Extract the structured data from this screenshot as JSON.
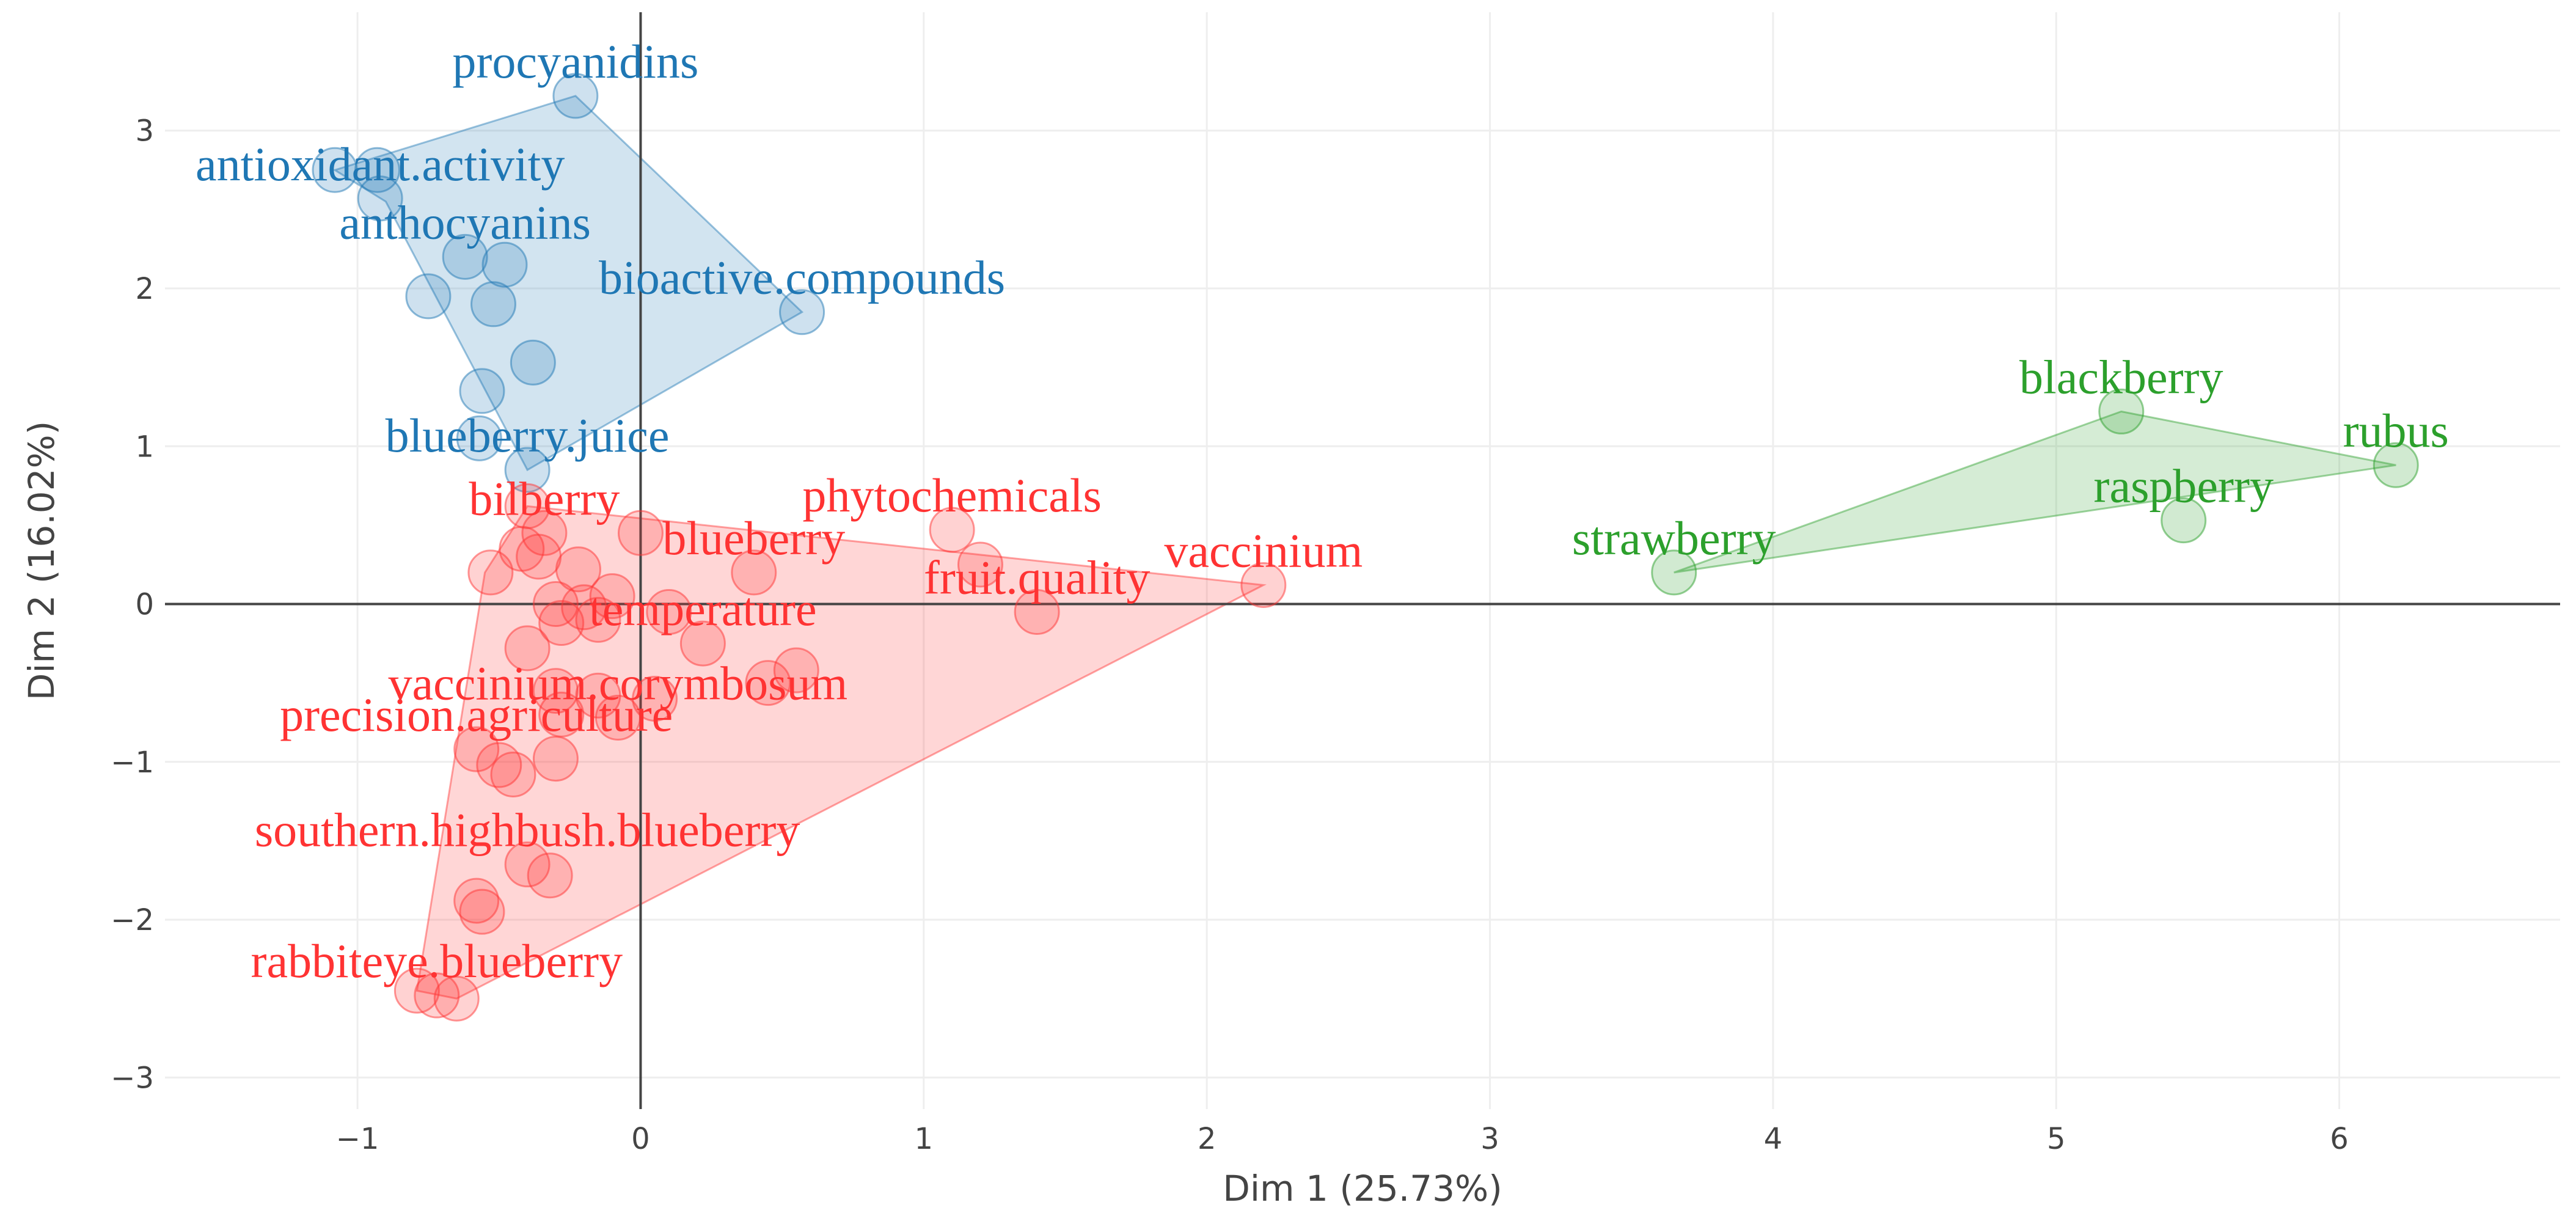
{
  "chart_data": {
    "type": "scatter",
    "xlabel": "Dim 1 (25.73%)",
    "ylabel": "Dim 2 (16.02%)",
    "xlim": [
      -1.68,
      6.78
    ],
    "ylim": [
      -3.2,
      3.75
    ],
    "x_ticks": [
      -1,
      0,
      1,
      2,
      3,
      4,
      5,
      6
    ],
    "y_ticks": [
      -3,
      -2,
      -1,
      0,
      1,
      2,
      3
    ],
    "x_tick_labels": [
      "−1",
      "0",
      "1",
      "2",
      "3",
      "4",
      "5",
      "6"
    ],
    "y_tick_labels": [
      "−3",
      "−2",
      "−1",
      "0",
      "1",
      "2",
      "3"
    ],
    "grid": true,
    "clusters": [
      {
        "color": "#1f77b4",
        "hull": [
          [
            -1.08,
            2.75
          ],
          [
            -0.23,
            3.22
          ],
          [
            0.57,
            1.85
          ],
          [
            -0.4,
            0.85
          ],
          [
            -0.9,
            2.55
          ]
        ],
        "points": [
          {
            "x": -0.23,
            "y": 3.22
          },
          {
            "x": -1.08,
            "y": 2.75
          },
          {
            "x": -0.93,
            "y": 2.75
          },
          {
            "x": -0.92,
            "y": 2.57
          },
          {
            "x": -0.62,
            "y": 2.2
          },
          {
            "x": -0.48,
            "y": 2.15
          },
          {
            "x": -0.75,
            "y": 1.95
          },
          {
            "x": -0.52,
            "y": 1.9
          },
          {
            "x": 0.57,
            "y": 1.85
          },
          {
            "x": -0.38,
            "y": 1.53
          },
          {
            "x": -0.56,
            "y": 1.35
          },
          {
            "x": -0.57,
            "y": 1.05
          },
          {
            "x": -0.4,
            "y": 0.85
          }
        ],
        "labels": [
          {
            "text": "procyanidins",
            "x": -0.23,
            "y": 3.22
          },
          {
            "text": "antioxidant.activity",
            "x": -0.92,
            "y": 2.57
          },
          {
            "text": "anthocyanins",
            "x": -0.62,
            "y": 2.2
          },
          {
            "text": "bioactive.compounds",
            "x": 0.57,
            "y": 1.85
          },
          {
            "text": "blueberry.juice",
            "x": -0.4,
            "y": 0.85
          }
        ]
      },
      {
        "color": "#ff3333",
        "hull": [
          [
            -0.4,
            0.62
          ],
          [
            2.2,
            0.12
          ],
          [
            -0.65,
            -2.5
          ],
          [
            -0.79,
            -2.45
          ],
          [
            -0.55,
            0.2
          ]
        ],
        "points": [
          {
            "x": -0.4,
            "y": 0.62
          },
          {
            "x": -0.34,
            "y": 0.45
          },
          {
            "x": 0.0,
            "y": 0.45
          },
          {
            "x": 1.1,
            "y": 0.47
          },
          {
            "x": -0.42,
            "y": 0.35
          },
          {
            "x": -0.36,
            "y": 0.3
          },
          {
            "x": 1.2,
            "y": 0.25
          },
          {
            "x": -0.53,
            "y": 0.2
          },
          {
            "x": -0.22,
            "y": 0.22
          },
          {
            "x": 0.4,
            "y": 0.2
          },
          {
            "x": 2.2,
            "y": 0.12
          },
          {
            "x": -0.1,
            "y": 0.05
          },
          {
            "x": -0.3,
            "y": 0.0
          },
          {
            "x": -0.2,
            "y": -0.02
          },
          {
            "x": 0.1,
            "y": -0.05
          },
          {
            "x": 1.4,
            "y": -0.05
          },
          {
            "x": -0.15,
            "y": -0.1
          },
          {
            "x": -0.28,
            "y": -0.12
          },
          {
            "x": 0.22,
            "y": -0.25
          },
          {
            "x": -0.4,
            "y": -0.28
          },
          {
            "x": 0.55,
            "y": -0.42
          },
          {
            "x": 0.45,
            "y": -0.5
          },
          {
            "x": -0.3,
            "y": -0.55
          },
          {
            "x": -0.15,
            "y": -0.58
          },
          {
            "x": 0.05,
            "y": -0.6
          },
          {
            "x": -0.28,
            "y": -0.7
          },
          {
            "x": -0.08,
            "y": -0.72
          },
          {
            "x": -0.58,
            "y": -0.92
          },
          {
            "x": -0.3,
            "y": -0.98
          },
          {
            "x": -0.5,
            "y": -1.02
          },
          {
            "x": -0.45,
            "y": -1.08
          },
          {
            "x": -0.4,
            "y": -1.65
          },
          {
            "x": -0.32,
            "y": -1.72
          },
          {
            "x": -0.58,
            "y": -1.88
          },
          {
            "x": -0.56,
            "y": -1.95
          },
          {
            "x": -0.79,
            "y": -2.45
          },
          {
            "x": -0.72,
            "y": -2.48
          },
          {
            "x": -0.65,
            "y": -2.5
          }
        ],
        "labels": [
          {
            "text": "bilberry",
            "x": -0.34,
            "y": 0.45
          },
          {
            "text": "phytochemicals",
            "x": 1.1,
            "y": 0.47
          },
          {
            "text": "vaccinium",
            "x": 2.2,
            "y": 0.12
          },
          {
            "text": "blueberry",
            "x": 0.4,
            "y": 0.2
          },
          {
            "text": "fruit.quality",
            "x": 1.4,
            "y": -0.05
          },
          {
            "text": "temperature",
            "x": 0.22,
            "y": -0.25
          },
          {
            "text": "vaccinium.corymbosum",
            "x": -0.08,
            "y": -0.72
          },
          {
            "text": "precision.agriculture",
            "x": -0.58,
            "y": -0.92
          },
          {
            "text": "southern.highbush.blueberry",
            "x": -0.4,
            "y": -1.65
          },
          {
            "text": "rabbiteye.blueberry",
            "x": -0.72,
            "y": -2.48
          }
        ]
      },
      {
        "color": "#2ca02c",
        "hull": [
          [
            3.65,
            0.2
          ],
          [
            5.23,
            1.22
          ],
          [
            6.2,
            0.88
          ]
        ],
        "points": [
          {
            "x": 3.65,
            "y": 0.2
          },
          {
            "x": 5.23,
            "y": 1.22
          },
          {
            "x": 5.45,
            "y": 0.53
          },
          {
            "x": 6.2,
            "y": 0.88
          }
        ],
        "labels": [
          {
            "text": "strawberry",
            "x": 3.65,
            "y": 0.2
          },
          {
            "text": "blackberry",
            "x": 5.23,
            "y": 1.22
          },
          {
            "text": "raspberry",
            "x": 5.45,
            "y": 0.53
          },
          {
            "text": "rubus",
            "x": 6.2,
            "y": 0.88
          }
        ]
      }
    ]
  }
}
